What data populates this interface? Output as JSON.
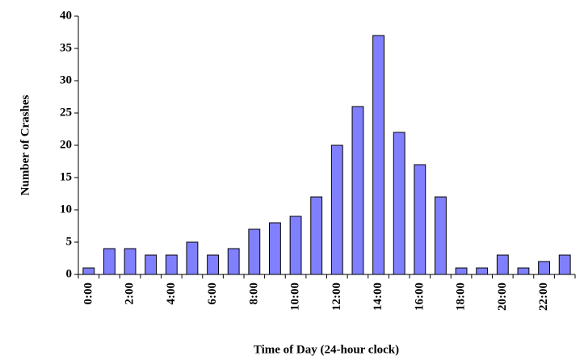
{
  "chart_data": {
    "type": "bar",
    "x_label": "Time of Day (24-hour clock)",
    "y_label": "Number of Crashes",
    "categories": [
      "0:00",
      null,
      "2:00",
      null,
      "4:00",
      null,
      "6:00",
      null,
      "8:00",
      null,
      "10:00",
      null,
      "12:00",
      null,
      "14:00",
      null,
      "16:00",
      null,
      "18:00",
      null,
      "20:00",
      null,
      "22:00",
      null
    ],
    "values": [
      1,
      4,
      4,
      3,
      3,
      5,
      3,
      4,
      7,
      8,
      9,
      12,
      20,
      26,
      37,
      22,
      17,
      12,
      1,
      1,
      3,
      1,
      2,
      3
    ],
    "color": "#8080ff",
    "ylim": [
      0,
      40
    ],
    "yticks": [
      0,
      5,
      10,
      15,
      20,
      25,
      30,
      35,
      40
    ],
    "grid": false
  }
}
